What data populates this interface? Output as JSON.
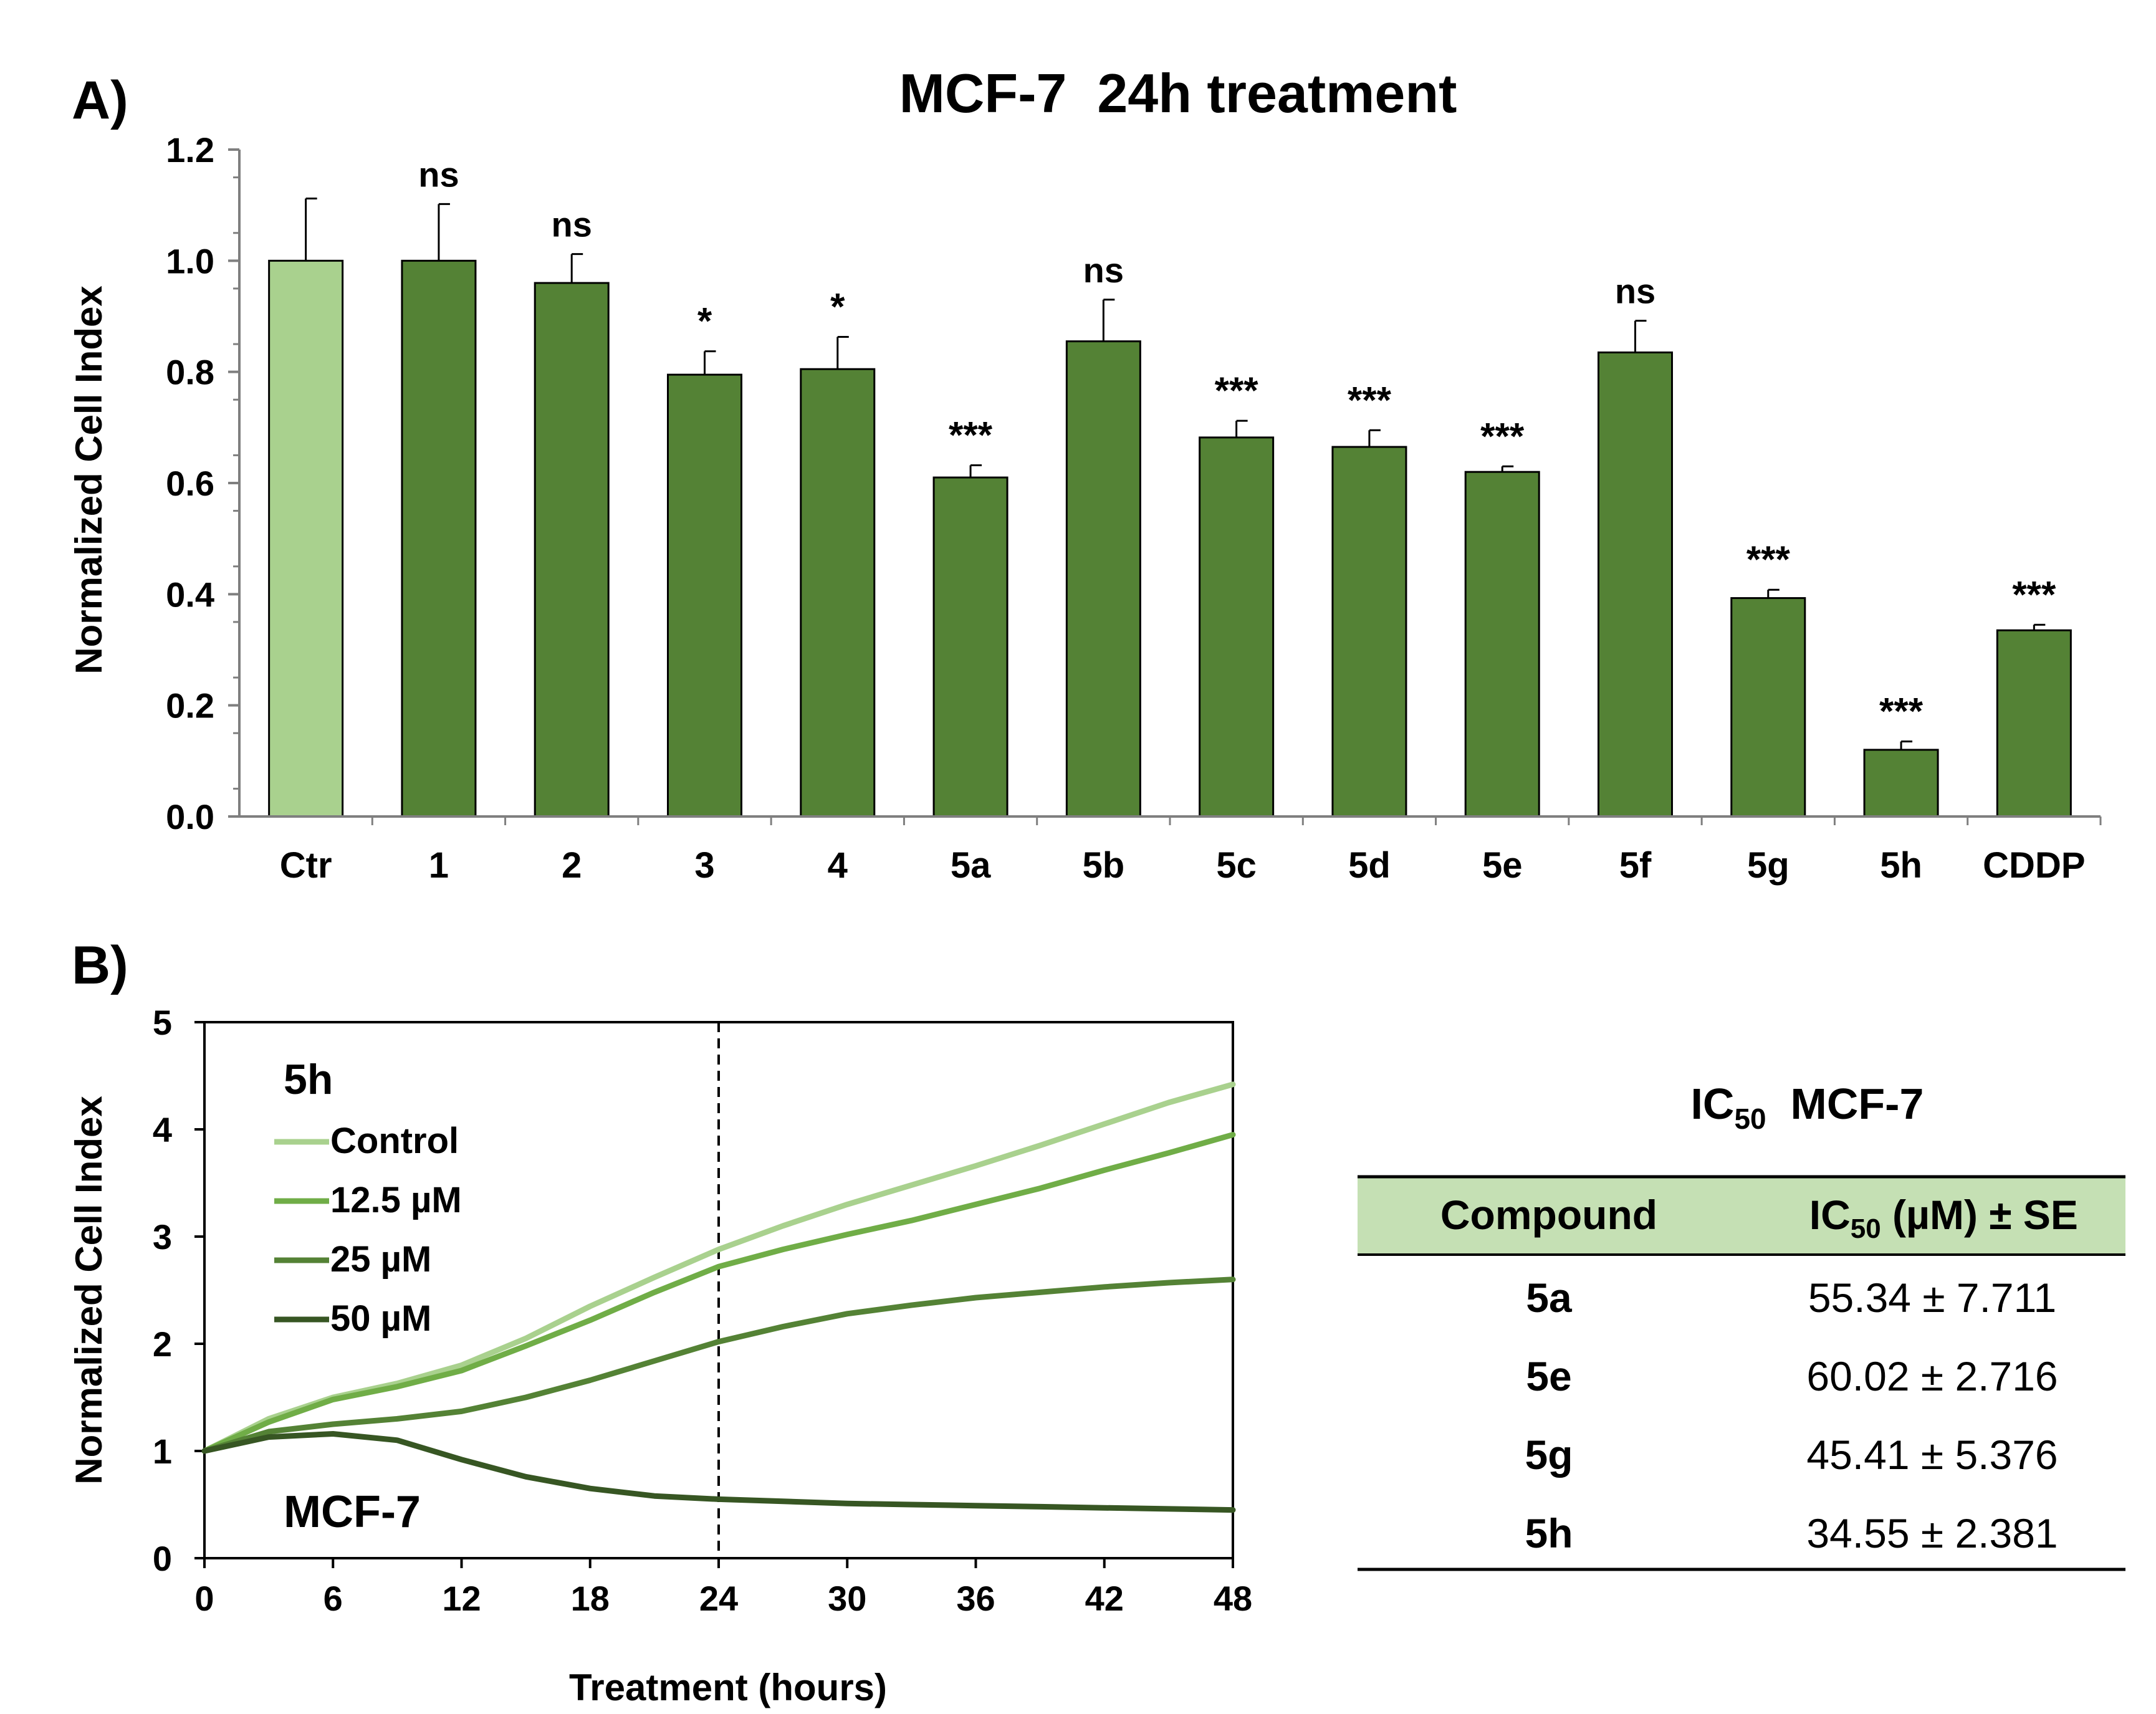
{
  "panel_a_label": "A)",
  "panel_b_label": "B)",
  "chart_data": [
    {
      "type": "bar",
      "title": "MCF-7  24h treatment",
      "xlabel": "",
      "ylabel": "Normalized Cell Index",
      "ylim": [
        0,
        1.2
      ],
      "yticks": [
        "0.0",
        "0.2",
        "0.4",
        "0.6",
        "0.8",
        "1.0",
        "1.2"
      ],
      "categories": [
        "Ctr",
        "1",
        "2",
        "3",
        "4",
        "5a",
        "5b",
        "5c",
        "5d",
        "5e",
        "5f",
        "5g",
        "5h",
        "CDDP"
      ],
      "values": [
        1.0,
        1.0,
        0.96,
        0.795,
        0.805,
        0.61,
        0.855,
        0.682,
        0.665,
        0.62,
        0.835,
        0.393,
        0.12,
        0.335
      ],
      "errors": [
        0.112,
        0.102,
        0.052,
        0.042,
        0.058,
        0.022,
        0.075,
        0.03,
        0.03,
        0.01,
        0.057,
        0.015,
        0.015,
        0.01
      ],
      "significance": [
        "",
        "ns",
        "ns",
        "*",
        "*",
        "***",
        "ns",
        "***",
        "***",
        "***",
        "ns",
        "***",
        "***",
        "***"
      ],
      "colors": {
        "control": "#a9d18e",
        "treated": "#548235"
      }
    },
    {
      "type": "line",
      "xlabel": "Treatment (hours)",
      "ylabel": "Normalized Cell Index",
      "xlim": [
        0,
        48
      ],
      "ylim": [
        0,
        5
      ],
      "xticks": [
        "0",
        "6",
        "12",
        "18",
        "24",
        "30",
        "36",
        "42",
        "48"
      ],
      "yticks": [
        "0",
        "1",
        "2",
        "3",
        "4",
        "5"
      ],
      "compound_label": "5h",
      "cell_line_label": "MCF-7",
      "vline_x": 24,
      "x": [
        0,
        3,
        6,
        9,
        12,
        15,
        18,
        21,
        24,
        27,
        30,
        33,
        36,
        39,
        42,
        45,
        48
      ],
      "series": [
        {
          "name": "Control",
          "color": "#a9d18e",
          "values": [
            1.0,
            1.3,
            1.5,
            1.63,
            1.8,
            2.05,
            2.35,
            2.62,
            2.88,
            3.1,
            3.3,
            3.48,
            3.66,
            3.85,
            4.05,
            4.25,
            4.42
          ]
        },
        {
          "name": "12.5 µM",
          "color": "#70ad47",
          "values": [
            1.0,
            1.27,
            1.48,
            1.6,
            1.75,
            1.98,
            2.22,
            2.48,
            2.72,
            2.88,
            3.02,
            3.15,
            3.3,
            3.45,
            3.62,
            3.78,
            3.95
          ]
        },
        {
          "name": "25 µM",
          "color": "#548235",
          "values": [
            1.0,
            1.18,
            1.25,
            1.3,
            1.37,
            1.5,
            1.66,
            1.84,
            2.02,
            2.16,
            2.28,
            2.36,
            2.43,
            2.48,
            2.53,
            2.57,
            2.6
          ]
        },
        {
          "name": "50 µM",
          "color": "#375623",
          "values": [
            1.0,
            1.13,
            1.16,
            1.1,
            0.92,
            0.76,
            0.65,
            0.58,
            0.55,
            0.53,
            0.51,
            0.5,
            0.49,
            0.48,
            0.47,
            0.46,
            0.45
          ]
        }
      ]
    },
    {
      "type": "table",
      "title_main": "IC",
      "title_sub": "50",
      "title_rest": "  MCF-7",
      "columns": [
        {
          "main": "Compound",
          "sub": "",
          "rest": ""
        },
        {
          "main": "IC",
          "sub": "50",
          "rest": " (µM) ± SE"
        }
      ],
      "rows": [
        [
          "5a",
          "55.34 ± 7.711"
        ],
        [
          "5e",
          "60.02 ± 2.716"
        ],
        [
          "5g",
          "45.41 ± 5.376"
        ],
        [
          "5h",
          "34.55 ± 2.381"
        ]
      ],
      "header_color": "#c5e0b4"
    }
  ]
}
